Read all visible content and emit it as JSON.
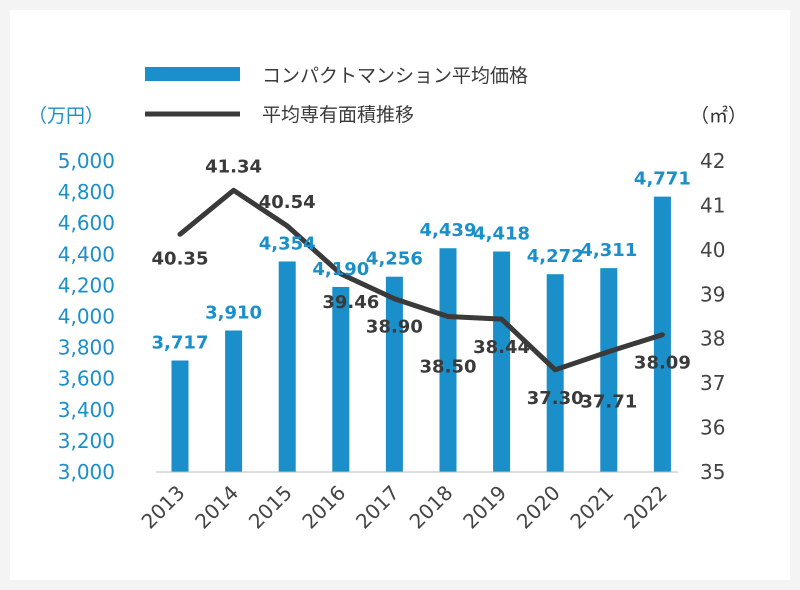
{
  "chart_data": {
    "type": "bar",
    "categories": [
      "2013",
      "2014",
      "2015",
      "2016",
      "2017",
      "2018",
      "2019",
      "2020",
      "2021",
      "2022"
    ],
    "series": [
      {
        "name": "コンパクトマンション平均価格",
        "kind": "bar",
        "axis": "left",
        "color": "#1a8fc9",
        "values": [
          3717,
          3910,
          4354,
          4190,
          4256,
          4439,
          4418,
          4272,
          4311,
          4771
        ],
        "labels": [
          "3,717",
          "3,910",
          "4,354",
          "4,190",
          "4,256",
          "4,439",
          "4,418",
          "4,272",
          "4,311",
          "4,771"
        ]
      },
      {
        "name": "平均専有面積推移",
        "kind": "line",
        "axis": "right",
        "color": "#3a3a3a",
        "values": [
          40.35,
          41.34,
          40.54,
          39.46,
          38.9,
          38.5,
          38.44,
          37.3,
          37.71,
          38.09
        ],
        "labels": [
          "40.35",
          "41.34",
          "40.54",
          "39.46",
          "38.90",
          "38.50",
          "38.44",
          "37.30",
          "37.71",
          "38.09"
        ]
      }
    ],
    "y_left": {
      "unit": "（万円）",
      "range": [
        3000,
        5000
      ],
      "ticks": [
        "5,000",
        "4,800",
        "4,600",
        "4,400",
        "4,200",
        "4,000",
        "3,800",
        "3,600",
        "3,400",
        "3,200",
        "3,000"
      ]
    },
    "y_right": {
      "unit": "（㎡）",
      "range": [
        35,
        42
      ],
      "ticks": [
        "42",
        "41",
        "40",
        "39",
        "38",
        "37",
        "36",
        "35"
      ]
    },
    "legend_position": "top",
    "grid": false
  }
}
